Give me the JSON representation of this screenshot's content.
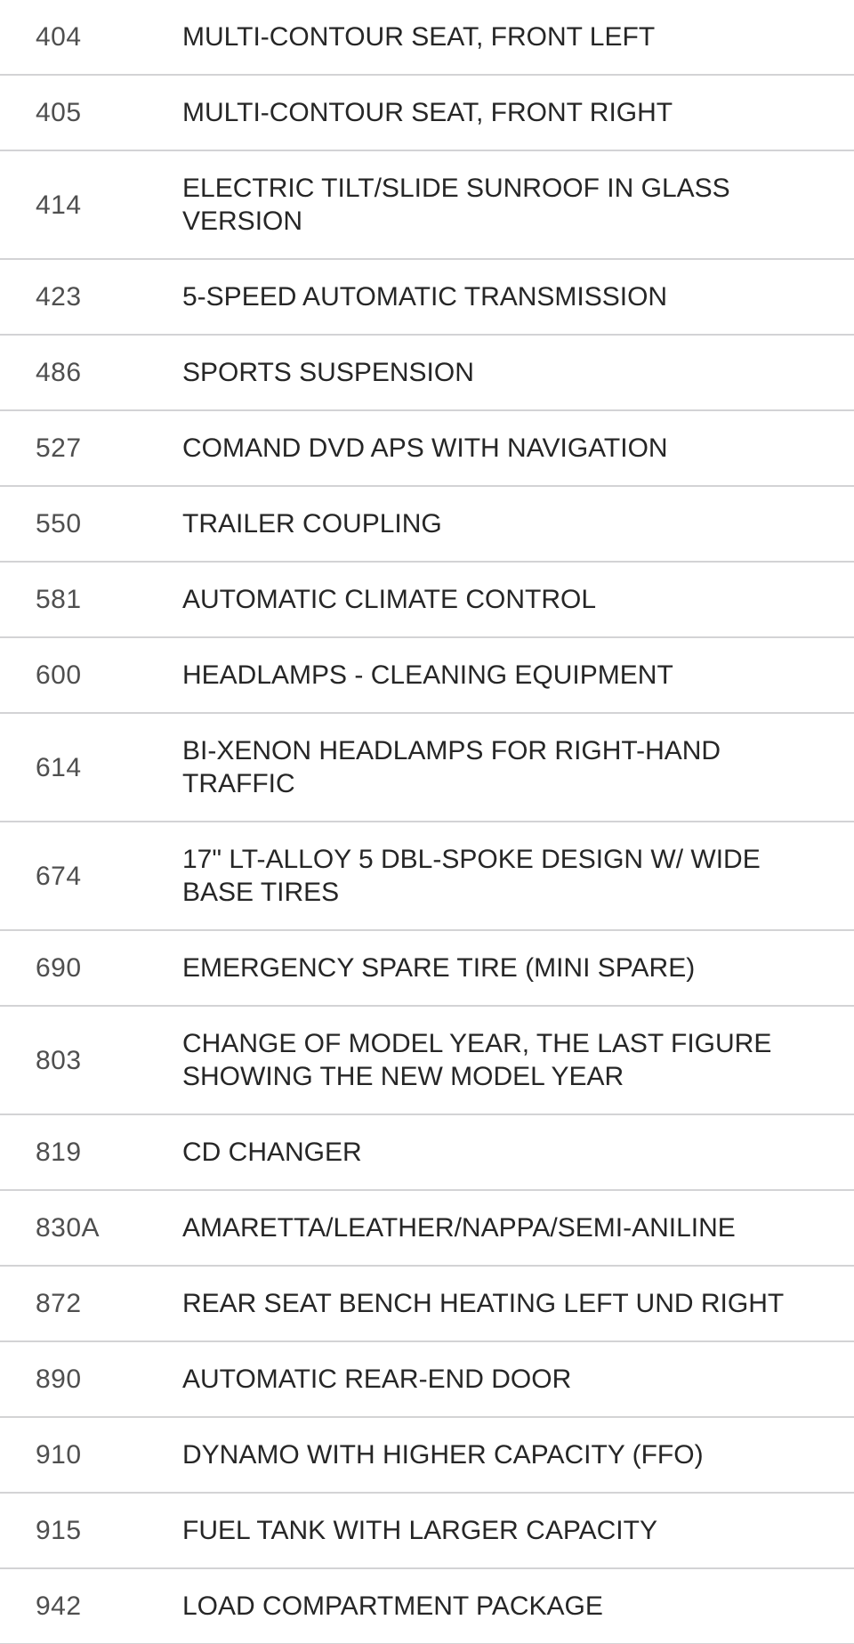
{
  "table": {
    "name": "vehicle-option-codes",
    "columns": [
      "code",
      "description"
    ],
    "rows": [
      {
        "code": "404",
        "description": "MULTI-CONTOUR SEAT, FRONT LEFT"
      },
      {
        "code": "405",
        "description": "MULTI-CONTOUR SEAT, FRONT RIGHT"
      },
      {
        "code": "414",
        "description": "ELECTRIC TILT/SLIDE SUNROOF IN GLASS VERSION"
      },
      {
        "code": "423",
        "description": "5-SPEED AUTOMATIC TRANSMISSION"
      },
      {
        "code": "486",
        "description": "SPORTS SUSPENSION"
      },
      {
        "code": "527",
        "description": "COMAND DVD APS WITH NAVIGATION"
      },
      {
        "code": "550",
        "description": "TRAILER COUPLING"
      },
      {
        "code": "581",
        "description": "AUTOMATIC CLIMATE CONTROL"
      },
      {
        "code": "600",
        "description": "HEADLAMPS - CLEANING EQUIPMENT"
      },
      {
        "code": "614",
        "description": "BI-XENON HEADLAMPS FOR RIGHT-HAND TRAFFIC"
      },
      {
        "code": "674",
        "description": "17\" LT-ALLOY 5 DBL-SPOKE DESIGN W/ WIDE BASE TIRES"
      },
      {
        "code": "690",
        "description": "EMERGENCY SPARE TIRE (MINI SPARE)"
      },
      {
        "code": "803",
        "description": "CHANGE OF MODEL YEAR, THE LAST FIGURE SHOWING THE NEW MODEL YEAR"
      },
      {
        "code": "819",
        "description": "CD CHANGER"
      },
      {
        "code": "830A",
        "description": "AMARETTA/LEATHER/NAPPA/SEMI-ANILINE"
      },
      {
        "code": "872",
        "description": "REAR SEAT BENCH HEATING LEFT UND RIGHT"
      },
      {
        "code": "890",
        "description": "AUTOMATIC REAR-END DOOR"
      },
      {
        "code": "910",
        "description": "DYNAMO WITH HIGHER CAPACITY (FFO)"
      },
      {
        "code": "915",
        "description": "FUEL TANK WITH LARGER CAPACITY"
      },
      {
        "code": "942",
        "description": "LOAD COMPARTMENT PACKAGE"
      }
    ]
  },
  "colors": {
    "background": "#ffffff",
    "divider": "#d3d3d5",
    "code_text": "#4f4f4f",
    "description_text": "#262626"
  }
}
